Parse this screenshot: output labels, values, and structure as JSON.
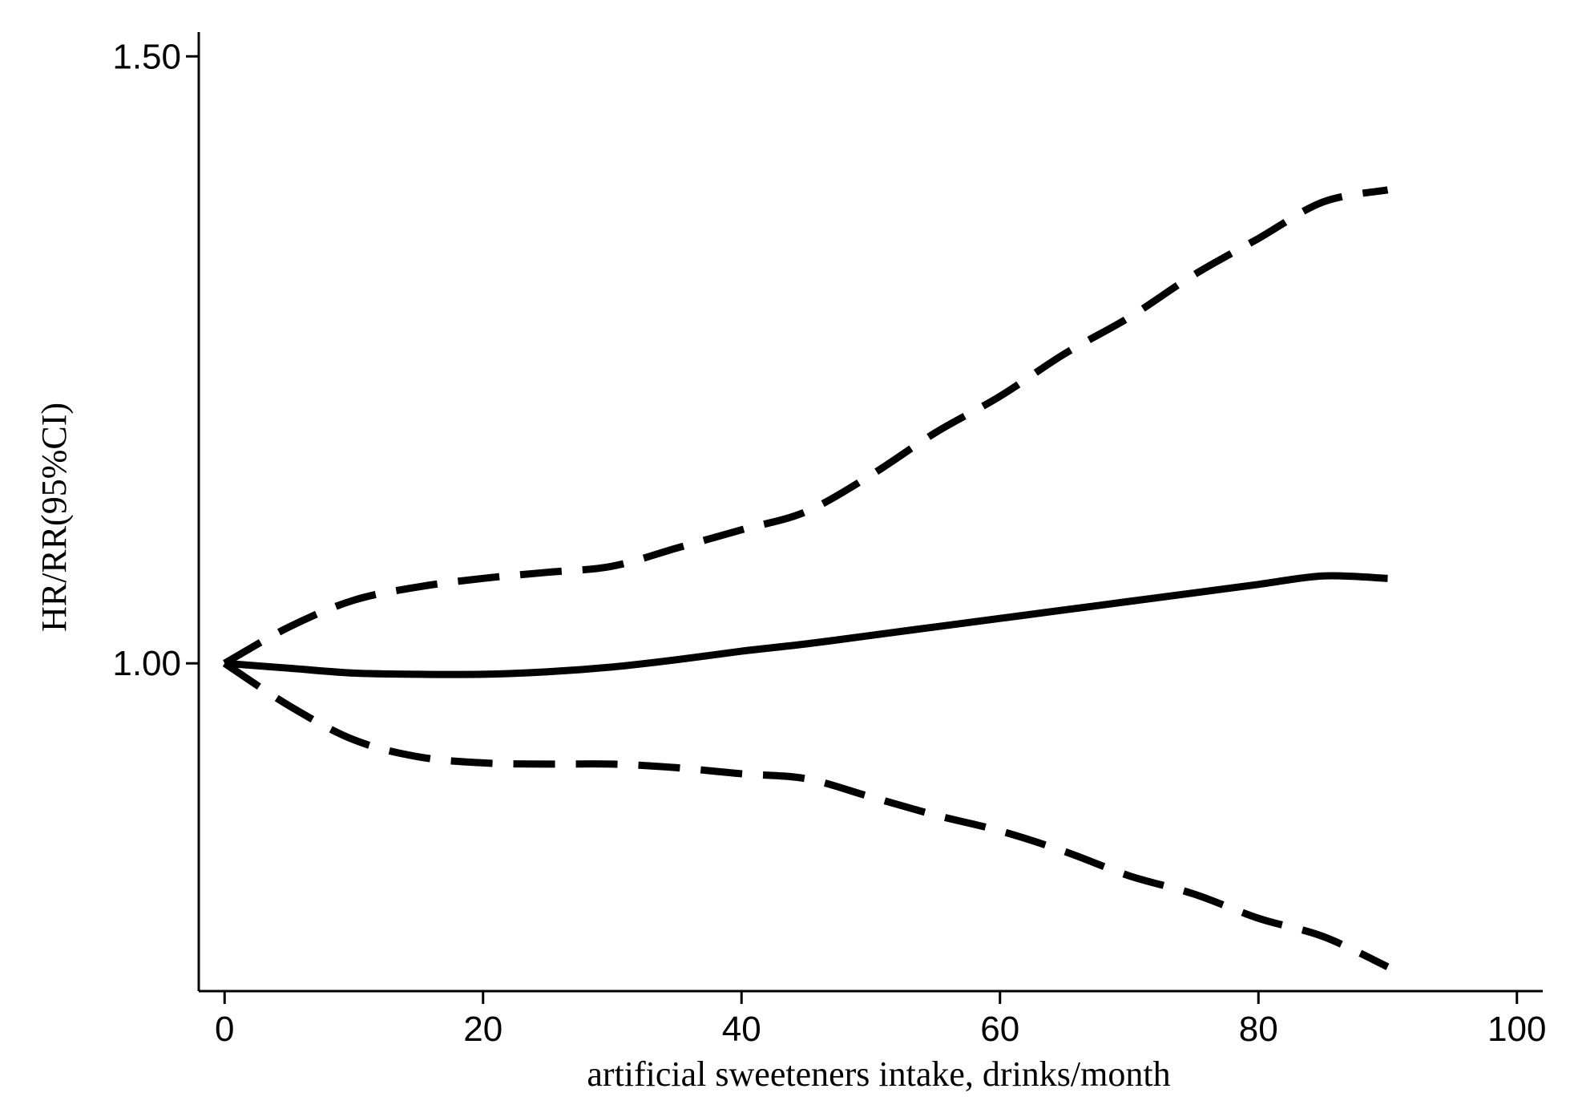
{
  "chart_data": {
    "type": "line",
    "title": "",
    "xlabel": "artificial sweeteners intake, drinks/month",
    "ylabel": "HR/RR(95%CI)",
    "xlim": [
      -2,
      102
    ],
    "ylim": [
      0.73,
      1.52
    ],
    "xticks": [
      0,
      20,
      40,
      60,
      80,
      100
    ],
    "xtick_labels": [
      "0",
      "20",
      "40",
      "60",
      "80",
      "100"
    ],
    "yticks": [
      1.0,
      1.5
    ],
    "ytick_labels": [
      "1.00",
      "1.50"
    ],
    "grid": false,
    "legend": "none",
    "series": [
      {
        "role": "estimate",
        "style": "solid",
        "color": "#000000",
        "x": [
          0,
          5,
          10,
          15,
          20,
          25,
          30,
          35,
          40,
          45,
          50,
          55,
          60,
          65,
          70,
          75,
          80,
          85,
          90
        ],
        "y": [
          1.0,
          0.996,
          0.992,
          0.991,
          0.991,
          0.993,
          0.997,
          1.003,
          1.01,
          1.016,
          1.023,
          1.03,
          1.037,
          1.044,
          1.051,
          1.058,
          1.065,
          1.072,
          1.07
        ]
      },
      {
        "role": "upper_ci",
        "style": "dashed",
        "color": "#000000",
        "x": [
          0,
          5,
          10,
          15,
          20,
          25,
          30,
          35,
          40,
          45,
          50,
          55,
          60,
          65,
          70,
          75,
          80,
          85,
          90
        ],
        "y": [
          1.0,
          1.03,
          1.052,
          1.063,
          1.07,
          1.075,
          1.08,
          1.095,
          1.11,
          1.125,
          1.155,
          1.19,
          1.22,
          1.255,
          1.285,
          1.32,
          1.35,
          1.38,
          1.39
        ]
      },
      {
        "role": "lower_ci",
        "style": "dashed",
        "color": "#000000",
        "x": [
          0,
          5,
          10,
          15,
          20,
          25,
          30,
          35,
          40,
          45,
          50,
          55,
          60,
          65,
          70,
          75,
          80,
          85,
          90
        ],
        "y": [
          1.0,
          0.965,
          0.937,
          0.923,
          0.918,
          0.917,
          0.917,
          0.914,
          0.909,
          0.905,
          0.89,
          0.875,
          0.862,
          0.845,
          0.825,
          0.81,
          0.79,
          0.775,
          0.75
        ]
      }
    ]
  }
}
